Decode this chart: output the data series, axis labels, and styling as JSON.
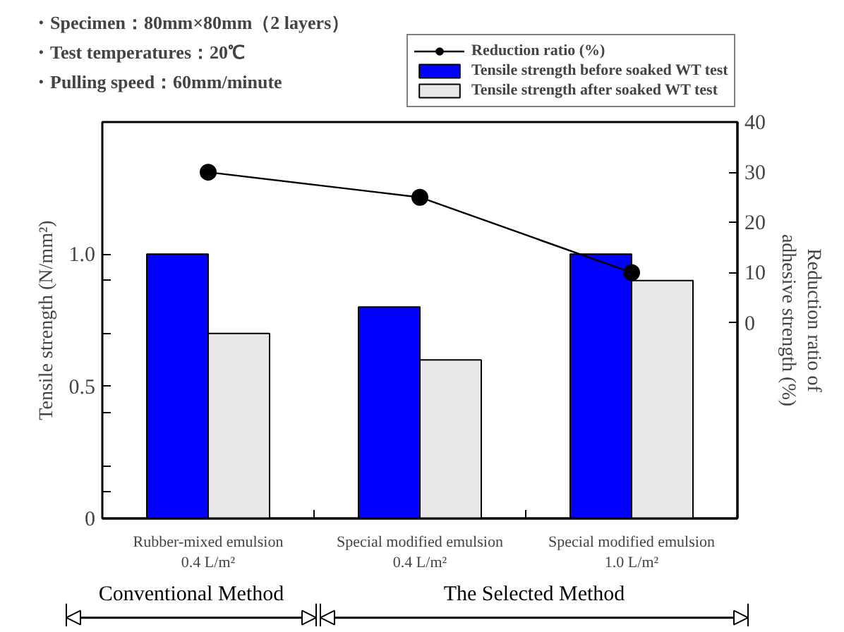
{
  "chart_data": {
    "type": "bar",
    "categories": [
      "Rubber-mixed emulsion\n0.4 L/m²",
      "Special modified emulsion\n0.4 L/m²",
      "Special modified emulsion\n1.0 L/m²"
    ],
    "series": [
      {
        "name": "Reduction ratio (%)",
        "type": "line",
        "axis": "y2",
        "color": "#000000",
        "values": [
          30,
          25,
          10
        ]
      },
      {
        "name": "Tensile strength before soaked WT test",
        "color": "#0000ff",
        "values": [
          1.0,
          0.8,
          1.0
        ]
      },
      {
        "name": "Tensile strength after soaked WT test",
        "color": "#e8e8e8",
        "values": [
          0.7,
          0.6,
          0.9
        ]
      }
    ],
    "ylabel": "Tensile strength (N/mm²)",
    "y2label": "Reduction ratio of adhesive strength (%)",
    "ylim": [
      0,
      1.5
    ],
    "yticks": [
      0,
      {
        "value": 0.1,
        "label": null
      },
      {
        "value": 0.2,
        "label": null
      },
      {
        "value": 0.4,
        "label": null
      },
      0.5,
      {
        "value": 0.7,
        "label": null
      },
      {
        "value": 0.9,
        "label": null
      },
      {
        "value": 1.0,
        "label": "1.0"
      }
    ],
    "y2lim": [
      -39,
      40
    ],
    "y2ticks": [
      0,
      10,
      20,
      30,
      40
    ],
    "marker": "circle",
    "legend": "top right",
    "grid": false,
    "annotations": [
      "・Specimen：80mm×80mm（2 layers）",
      "・Test temperatures：20℃",
      "・Pulling speed：60mm/minute",
      "Conventional Method",
      "The Selected Method"
    ]
  }
}
